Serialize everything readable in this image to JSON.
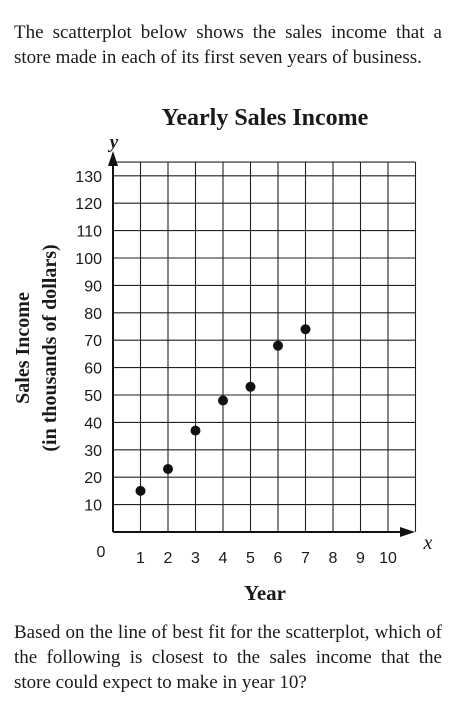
{
  "intro_text": "The scatterplot below shows the sales income that a store made in each of its first seven years of business.",
  "question_text": "Based on the line of best fit for the scatterplot, which of the following is closest to the sales income that the store could expect to make in year 10?",
  "chart_data": {
    "type": "scatter",
    "title": "Yearly Sales Income",
    "xlabel": "Year",
    "ylabel_line1": "Sales Income",
    "ylabel_line2": "(in thousands of dollars)",
    "x_axis_letter": "x",
    "y_axis_letter": "y",
    "origin_label": "0",
    "xlim": [
      0,
      11
    ],
    "ylim": [
      0,
      135
    ],
    "grid": true,
    "x_ticks": [
      1,
      2,
      3,
      4,
      5,
      6,
      7,
      8,
      9,
      10
    ],
    "y_ticks": [
      10,
      20,
      30,
      40,
      50,
      60,
      70,
      80,
      90,
      100,
      110,
      120,
      130
    ],
    "x_tick_labels": [
      "1",
      "2",
      "3",
      "4",
      "5",
      "6",
      "7",
      "8",
      "9",
      "10"
    ],
    "y_tick_labels": [
      "10",
      "20",
      "30",
      "40",
      "50",
      "60",
      "70",
      "80",
      "90",
      "100",
      "110",
      "120",
      "130"
    ],
    "points": [
      {
        "x": 1,
        "y": 15
      },
      {
        "x": 2,
        "y": 23
      },
      {
        "x": 3,
        "y": 37
      },
      {
        "x": 4,
        "y": 48
      },
      {
        "x": 5,
        "y": 53
      },
      {
        "x": 6,
        "y": 68
      },
      {
        "x": 7,
        "y": 74
      }
    ]
  }
}
